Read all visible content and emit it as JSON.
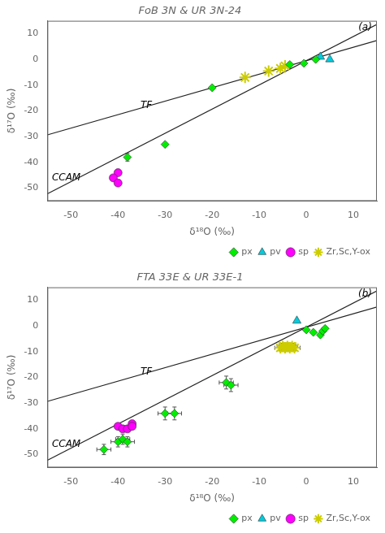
{
  "chart_data": [
    {
      "type": "scatter",
      "title": "FoB 3N & UR 3N-24",
      "xlabel": "δ¹⁸O (‰)",
      "ylabel": "δ¹⁷O (‰)",
      "xlim": [
        -55,
        15
      ],
      "ylim": [
        -55,
        15
      ],
      "xticks": [
        -50,
        -40,
        -30,
        -20,
        -10,
        0,
        10
      ],
      "yticks": [
        -50,
        -40,
        -30,
        -20,
        -10,
        0,
        10
      ],
      "grid": false,
      "legend": "lower right",
      "series": [
        {
          "type": "line",
          "color": "#222222",
          "x": [
            -55,
            15
          ],
          "values": [
            -29.32,
            7.36
          ]
        },
        {
          "type": "line",
          "color": "#222222",
          "x": [
            -55,
            15
          ],
          "values": [
            -52.2,
            13.6
          ]
        },
        {
          "name": "px",
          "color": "#00ee00",
          "marker": "diamond",
          "x": [
            -38,
            -30,
            -20,
            -3.5,
            -0.5,
            2.0
          ],
          "values": [
            -38,
            -33,
            -11,
            -2.0,
            -1.5,
            0.0
          ],
          "xerr": [
            0,
            0,
            0,
            0,
            0,
            0
          ],
          "yerr": [
            1.5,
            0,
            0,
            0,
            0,
            0
          ]
        },
        {
          "name": "pv",
          "color": "#00ccdd",
          "marker": "triangle",
          "x": [
            3.0,
            5.0
          ],
          "values": [
            1.0,
            0.0
          ]
        },
        {
          "name": "sp",
          "color": "#ff00ff",
          "marker": "circle",
          "x": [
            -40,
            -41,
            -40
          ],
          "values": [
            -44,
            -46,
            -48
          ]
        },
        {
          "name": "Zr,Sc,Y-ox",
          "color": "#cccc00",
          "marker": "star",
          "x": [
            -13,
            -8,
            -5.5,
            -4.5
          ],
          "values": [
            -7.0,
            -4.5,
            -3.5,
            -2.5
          ]
        }
      ],
      "annotations": [
        {
          "text": "TF",
          "x": -34,
          "y": -18
        },
        {
          "text": "CCAM",
          "x": -51,
          "y": -46
        },
        {
          "text": "(a)",
          "x": 12.5,
          "y": 12.5
        }
      ]
    },
    {
      "type": "scatter",
      "title": "FTA 33E & UR 33E-1",
      "xlabel": "δ¹⁸O (‰)",
      "ylabel": "δ¹⁷O (‰)",
      "xlim": [
        -55,
        15
      ],
      "ylim": [
        -55,
        15
      ],
      "xticks": [
        -50,
        -40,
        -30,
        -20,
        -10,
        0,
        10
      ],
      "yticks": [
        -50,
        -40,
        -30,
        -20,
        -10,
        0,
        10
      ],
      "grid": false,
      "legend": "lower right",
      "series": [
        {
          "type": "line",
          "color": "#222222",
          "x": [
            -55,
            15
          ],
          "values": [
            -29.32,
            7.36
          ]
        },
        {
          "type": "line",
          "color": "#222222",
          "x": [
            -55,
            15
          ],
          "values": [
            -52.2,
            13.6
          ]
        },
        {
          "name": "px",
          "color": "#00ee00",
          "marker": "diamond",
          "x": [
            -43,
            -40,
            -39,
            -38,
            -30,
            -28,
            -17,
            -16,
            0.0,
            1.5,
            3.0,
            3.5,
            4.0
          ],
          "values": [
            -48,
            -45,
            -44,
            -45,
            -34,
            -34,
            -22,
            -23,
            -1.5,
            -2.5,
            -3.5,
            -2.0,
            -1.0
          ],
          "xerr": [
            1.5,
            1.5,
            1.5,
            1.5,
            1.5,
            1.5,
            1.5,
            1.5,
            0,
            0,
            0,
            0,
            0
          ],
          "yerr": [
            2.0,
            2.0,
            2.0,
            2.0,
            2.5,
            2.5,
            2.5,
            2.5,
            0,
            0,
            0,
            0,
            0
          ]
        },
        {
          "name": "pv",
          "color": "#00ccdd",
          "marker": "triangle",
          "x": [
            -2.0
          ],
          "values": [
            2.0
          ]
        },
        {
          "name": "sp",
          "color": "#ff00ff",
          "marker": "circle",
          "x": [
            -40,
            -39,
            -38,
            -37,
            -37
          ],
          "values": [
            -39,
            -40,
            -40,
            -38,
            -39
          ]
        },
        {
          "name": "Zr,Sc,Y-ox",
          "color": "#cccc00",
          "marker": "star",
          "x": [
            -5.5,
            -5.0,
            -4.5,
            -4.0,
            -3.5,
            -3.0,
            -2.5
          ],
          "values": [
            -8.5,
            -8.0,
            -8.5,
            -8.0,
            -8.5,
            -8.0,
            -8.5
          ],
          "xerr": [
            1.2,
            1.2,
            1.2,
            1.2,
            1.2,
            1.2,
            1.2
          ],
          "yerr": [
            1.2,
            1.2,
            1.2,
            1.2,
            1.2,
            1.2,
            1.2
          ]
        }
      ],
      "annotations": [
        {
          "text": "TF",
          "x": -34,
          "y": -18
        },
        {
          "text": "CCAM",
          "x": -51,
          "y": -46
        },
        {
          "text": "(b)",
          "x": 12.5,
          "y": 12.5
        }
      ]
    }
  ]
}
